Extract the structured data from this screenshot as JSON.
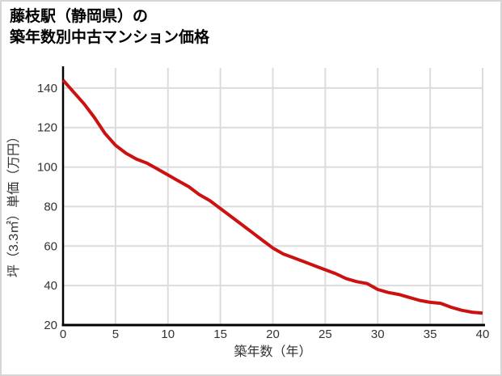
{
  "page": {
    "background_color": "#ffffff",
    "border_color": "#d6d6d6"
  },
  "header": {
    "title_line1": "藤枝駅（静岡県）の",
    "title_line2": "築年数別中古マンション価格"
  },
  "chart_data": {
    "type": "line",
    "title": "藤枝駅（静岡県）の築年数別中古マンション価格",
    "xlabel": "築年数（年）",
    "ylabel": "坪（3.3㎡）単価（万円）",
    "x": [
      0,
      1,
      2,
      3,
      4,
      5,
      6,
      7,
      8,
      9,
      10,
      11,
      12,
      13,
      14,
      15,
      16,
      17,
      18,
      19,
      20,
      21,
      22,
      23,
      24,
      25,
      26,
      27,
      28,
      29,
      30,
      31,
      32,
      33,
      34,
      35,
      36,
      37,
      38,
      39,
      40
    ],
    "values": [
      144,
      138,
      132,
      125,
      117,
      111,
      107,
      104,
      102,
      99,
      96,
      93,
      90,
      86,
      83,
      79,
      75,
      71,
      67,
      63,
      59,
      56,
      54,
      52,
      50,
      48,
      46,
      43.5,
      42,
      41,
      38,
      36.5,
      35.5,
      34,
      32.5,
      31.5,
      31,
      29,
      27.5,
      26.5,
      26
    ],
    "series_name": "坪単価",
    "xlim": [
      0,
      40
    ],
    "ylim": [
      20,
      151
    ],
    "xticks": [
      0,
      5,
      10,
      15,
      20,
      25,
      30,
      35,
      40
    ],
    "yticks": [
      20,
      40,
      60,
      80,
      100,
      120,
      140
    ],
    "grid": true,
    "legend": false,
    "line_color": "#cc1111",
    "grid_color": "#dcdcdc",
    "axis_color": "#000000",
    "tick_label_color": "#333333",
    "axis_label_color": "#333333"
  }
}
